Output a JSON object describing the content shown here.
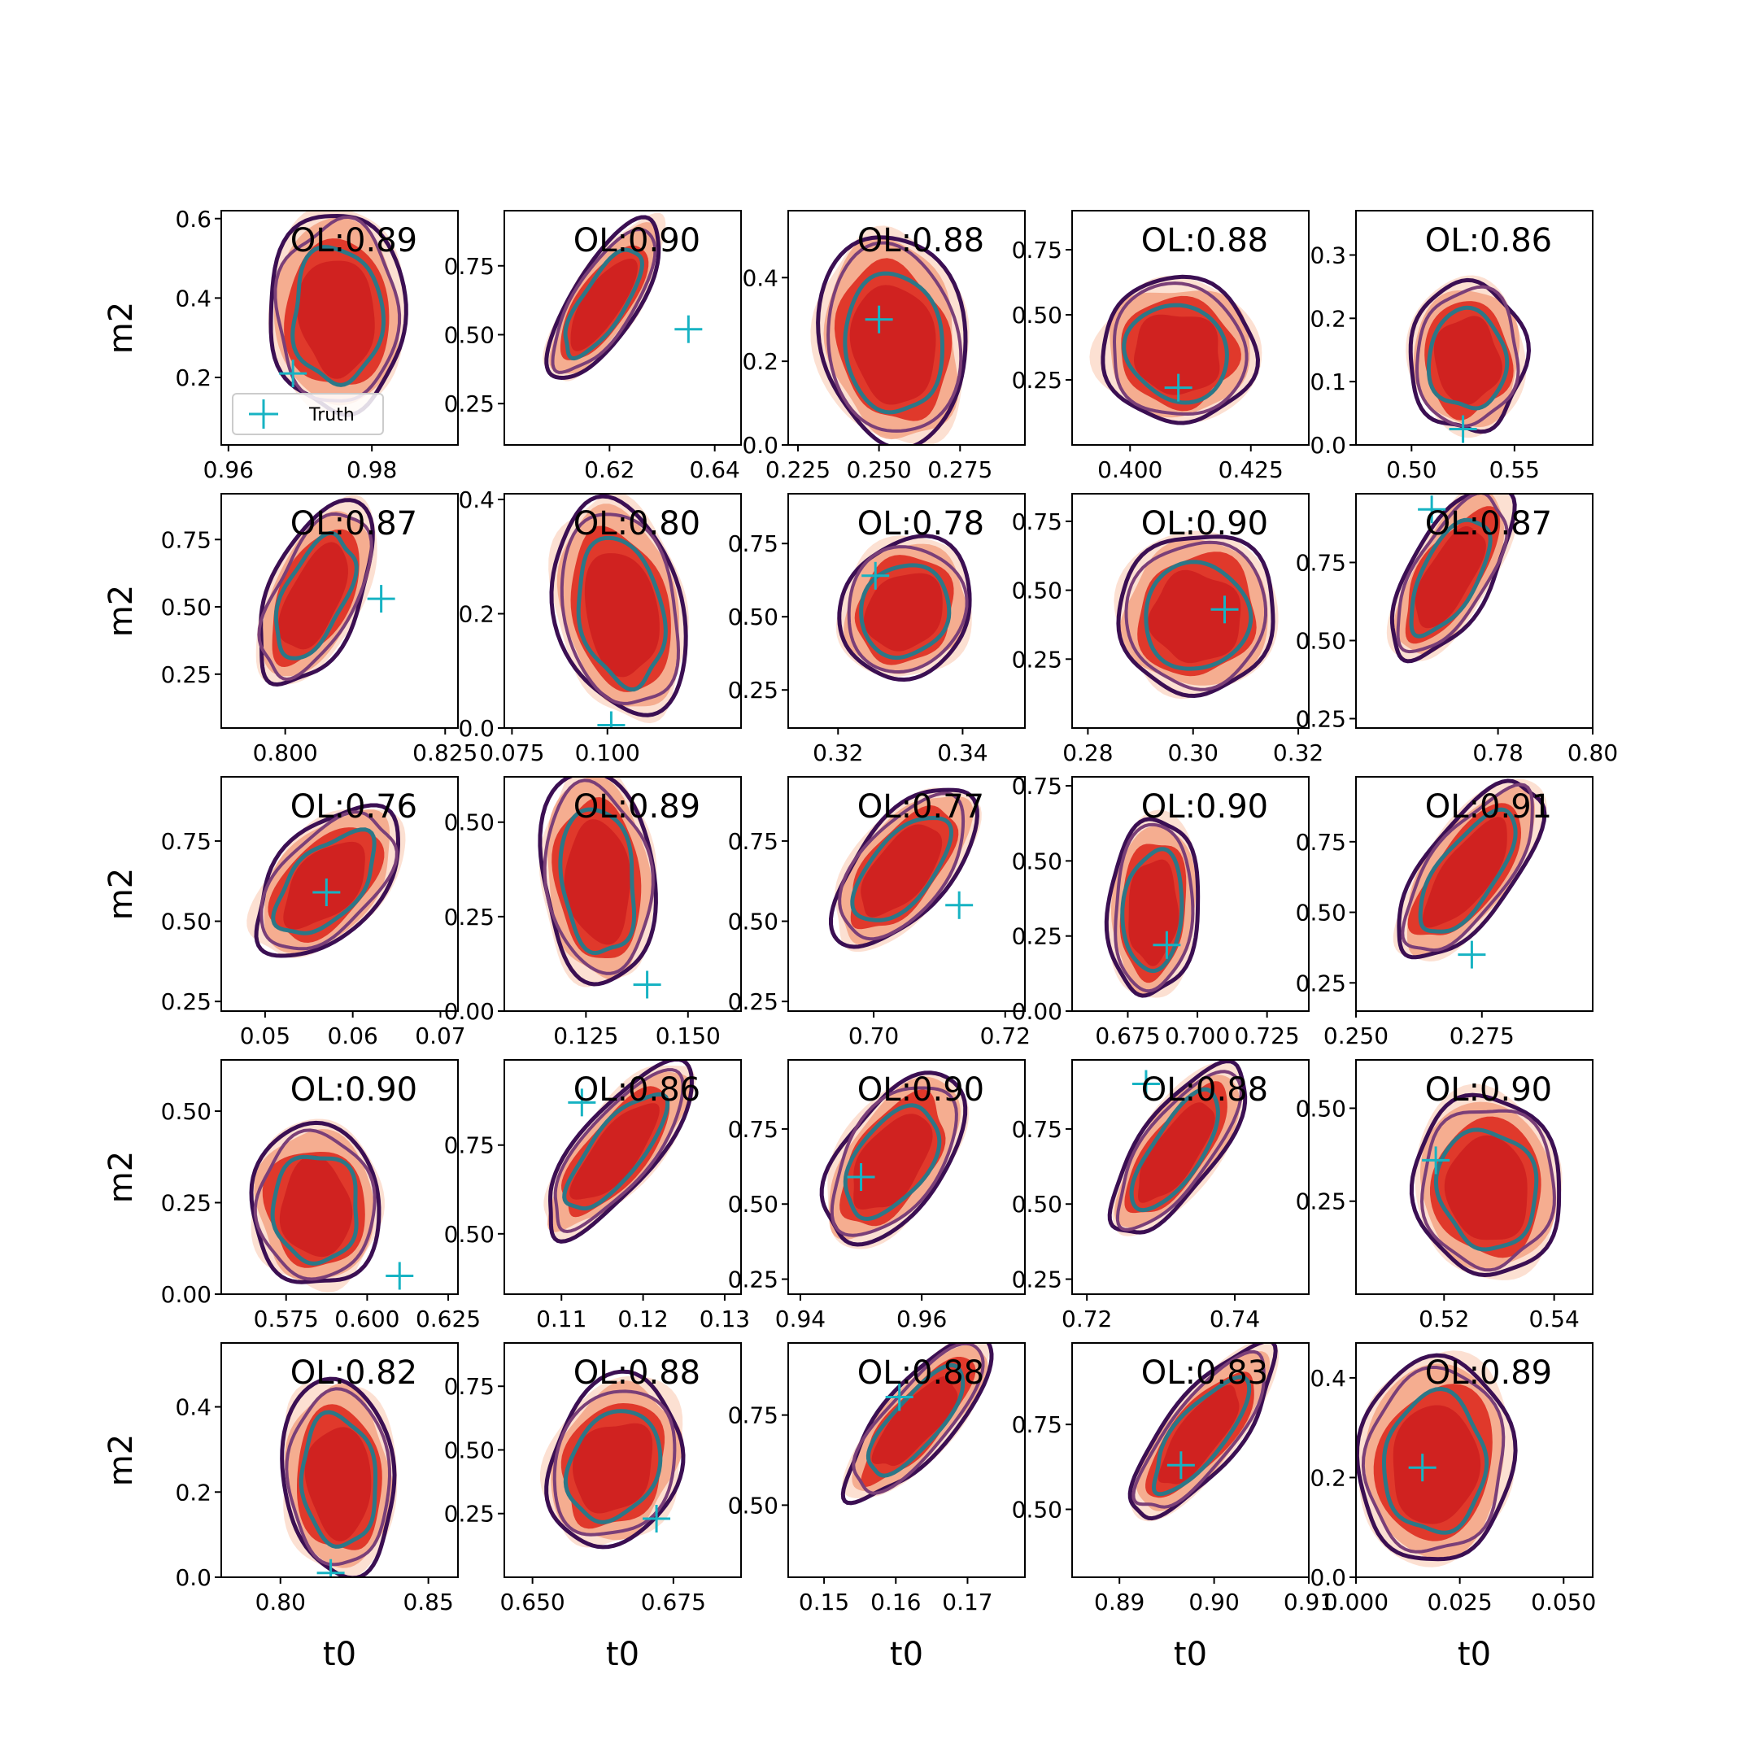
{
  "chart_data": {
    "type": "contour-grid",
    "rows": 5,
    "cols": 5,
    "xlabel": "t0",
    "ylabel": "m2",
    "legend": {
      "label": "Truth",
      "placement": "lower-left of first panel"
    },
    "colors": {
      "truth_marker": "#17b3c3",
      "fill_outer": "#fbd5c3",
      "fill_mid": "#f3a07f",
      "fill_inner": "#e0392b",
      "fill_core": "#cc1f1f",
      "contour_outer": "#3b0f53",
      "contour_mid": "#7a3f78",
      "contour_inner": "#2c7787"
    },
    "panels": [
      {
        "ol": "OL:0.89",
        "xlim": [
          0.959,
          0.992
        ],
        "ylim": [
          0.03,
          0.62
        ],
        "xticks": [
          0.96,
          0.98
        ],
        "xtick_labels": [
          "0.96",
          "0.98"
        ],
        "yticks": [
          0.2,
          0.4,
          0.6
        ],
        "ytick_labels": [
          "0.2",
          "0.4",
          "0.6"
        ],
        "truth": [
          0.969,
          0.21
        ],
        "shape": {
          "cx": 0.49,
          "cy": 0.52,
          "rx": 0.26,
          "ry": 0.4,
          "tilt": 0
        }
      },
      {
        "ol": "OL:0.90",
        "xlim": [
          0.6,
          0.645
        ],
        "ylim": [
          0.1,
          0.95
        ],
        "xticks": [
          0.62,
          0.64
        ],
        "xtick_labels": [
          "0.62",
          "0.64"
        ],
        "yticks": [
          0.25,
          0.5,
          0.75
        ],
        "ytick_labels": [
          "0.25",
          "0.50",
          "0.75"
        ],
        "truth": [
          0.635,
          0.52
        ],
        "shape": {
          "cx": 0.4,
          "cy": 0.58,
          "rx": 0.13,
          "ry": 0.36,
          "tilt": -32
        }
      },
      {
        "ol": "OL:0.88",
        "xlim": [
          0.222,
          0.295
        ],
        "ylim": [
          0.0,
          0.56
        ],
        "xticks": [
          0.225,
          0.25,
          0.275
        ],
        "xtick_labels": [
          "0.225",
          "0.250",
          "0.275"
        ],
        "yticks": [
          0.0,
          0.2,
          0.4
        ],
        "ytick_labels": [
          "0.0",
          "0.2",
          "0.4"
        ],
        "truth": [
          0.25,
          0.3
        ],
        "shape": {
          "cx": 0.45,
          "cy": 0.4,
          "rx": 0.28,
          "ry": 0.42,
          "tilt": 8
        }
      },
      {
        "ol": "OL:0.88",
        "xlim": [
          0.388,
          0.437
        ],
        "ylim": [
          0.0,
          0.9
        ],
        "xticks": [
          0.4,
          0.425
        ],
        "xtick_labels": [
          "0.400",
          "0.425"
        ],
        "yticks": [
          0.25,
          0.5,
          0.75
        ],
        "ytick_labels": [
          "0.25",
          "0.50",
          "0.75"
        ],
        "truth": [
          0.41,
          0.22
        ],
        "shape": {
          "cx": 0.44,
          "cy": 0.37,
          "rx": 0.3,
          "ry": 0.28,
          "tilt": -15
        }
      },
      {
        "ol": "OL:0.86",
        "xlim": [
          0.473,
          0.588
        ],
        "ylim": [
          0.0,
          0.37
        ],
        "xticks": [
          0.5,
          0.55
        ],
        "xtick_labels": [
          "0.50",
          "0.55"
        ],
        "yticks": [
          0.0,
          0.1,
          0.2,
          0.3
        ],
        "ytick_labels": [
          "0.0",
          "0.1",
          "0.2",
          "0.3"
        ],
        "truth": [
          0.525,
          0.025
        ],
        "shape": {
          "cx": 0.47,
          "cy": 0.34,
          "rx": 0.22,
          "ry": 0.3,
          "tilt": 0
        }
      },
      {
        "ol": "OL:0.87",
        "xlim": [
          0.79,
          0.827
        ],
        "ylim": [
          0.05,
          0.92
        ],
        "xticks": [
          0.8,
          0.825
        ],
        "xtick_labels": [
          "0.800",
          "0.825"
        ],
        "yticks": [
          0.25,
          0.5,
          0.75
        ],
        "ytick_labels": [
          "0.25",
          "0.50",
          "0.75"
        ],
        "truth": [
          0.815,
          0.53
        ],
        "shape": {
          "cx": 0.38,
          "cy": 0.53,
          "rx": 0.18,
          "ry": 0.38,
          "tilt": -25
        }
      },
      {
        "ol": "OL:0.80",
        "xlim": [
          0.073,
          0.135
        ],
        "ylim": [
          0.0,
          0.41
        ],
        "xticks": [
          0.075,
          0.1
        ],
        "xtick_labels": [
          "0.075",
          "0.100"
        ],
        "yticks": [
          0.0,
          0.2,
          0.4
        ],
        "ytick_labels": [
          "0.0",
          "0.2",
          "0.4"
        ],
        "truth": [
          0.101,
          0.005
        ],
        "shape": {
          "cx": 0.5,
          "cy": 0.46,
          "rx": 0.24,
          "ry": 0.44,
          "tilt": 12
        }
      },
      {
        "ol": "OL:0.78",
        "xlim": [
          0.312,
          0.35
        ],
        "ylim": [
          0.12,
          0.92
        ],
        "xticks": [
          0.32,
          0.34
        ],
        "xtick_labels": [
          "0.32",
          "0.34"
        ],
        "yticks": [
          0.25,
          0.5,
          0.75
        ],
        "ytick_labels": [
          "0.25",
          "0.50",
          "0.75"
        ],
        "truth": [
          0.326,
          0.64
        ],
        "shape": {
          "cx": 0.48,
          "cy": 0.48,
          "rx": 0.25,
          "ry": 0.28,
          "tilt": -30
        }
      },
      {
        "ol": "OL:0.90",
        "xlim": [
          0.277,
          0.322
        ],
        "ylim": [
          0.0,
          0.85
        ],
        "xticks": [
          0.28,
          0.3,
          0.32
        ],
        "xtick_labels": [
          "0.28",
          "0.30",
          "0.32"
        ],
        "yticks": [
          0.25,
          0.5,
          0.75
        ],
        "ytick_labels": [
          "0.25",
          "0.50",
          "0.75"
        ],
        "truth": [
          0.306,
          0.43
        ],
        "shape": {
          "cx": 0.52,
          "cy": 0.45,
          "rx": 0.3,
          "ry": 0.32,
          "tilt": -10
        }
      },
      {
        "ol": "OL:0.87",
        "xlim": [
          0.75,
          0.8
        ],
        "ylim": [
          0.22,
          0.97
        ],
        "xticks": [
          0.78,
          0.8
        ],
        "xtick_labels": [
          "0.78",
          "0.80"
        ],
        "yticks": [
          0.25,
          0.5,
          0.75
        ],
        "ytick_labels": [
          "0.25",
          "0.50",
          "0.75"
        ],
        "truth": [
          0.766,
          0.92
        ],
        "shape": {
          "cx": 0.38,
          "cy": 0.62,
          "rx": 0.16,
          "ry": 0.38,
          "tilt": -30
        }
      },
      {
        "ol": "OL:0.76",
        "xlim": [
          0.045,
          0.072
        ],
        "ylim": [
          0.22,
          0.95
        ],
        "xticks": [
          0.05,
          0.06,
          0.07
        ],
        "xtick_labels": [
          "0.05",
          "0.06",
          "0.07"
        ],
        "yticks": [
          0.25,
          0.5,
          0.75
        ],
        "ytick_labels": [
          "0.25",
          "0.50",
          "0.75"
        ],
        "truth": [
          0.057,
          0.59
        ],
        "shape": {
          "cx": 0.42,
          "cy": 0.52,
          "rx": 0.2,
          "ry": 0.36,
          "tilt": -42
        }
      },
      {
        "ol": "OL:0.89",
        "xlim": [
          0.105,
          0.163
        ],
        "ylim": [
          0.0,
          0.62
        ],
        "xticks": [
          0.125,
          0.15
        ],
        "xtick_labels": [
          "0.125",
          "0.150"
        ],
        "yticks": [
          0.0,
          0.25,
          0.5
        ],
        "ytick_labels": [
          "0.00",
          "0.25",
          "0.50"
        ],
        "truth": [
          0.14,
          0.07
        ],
        "shape": {
          "cx": 0.4,
          "cy": 0.52,
          "rx": 0.22,
          "ry": 0.42,
          "tilt": 5
        }
      },
      {
        "ol": "OL:0.77",
        "xlim": [
          0.687,
          0.723
        ],
        "ylim": [
          0.22,
          0.95
        ],
        "xticks": [
          0.7,
          0.72
        ],
        "xtick_labels": [
          "0.70",
          "0.72"
        ],
        "yticks": [
          0.25,
          0.5,
          0.75
        ],
        "ytick_labels": [
          "0.25",
          "0.50",
          "0.75"
        ],
        "truth": [
          0.713,
          0.55
        ],
        "shape": {
          "cx": 0.46,
          "cy": 0.58,
          "rx": 0.18,
          "ry": 0.38,
          "tilt": -38
        }
      },
      {
        "ol": "OL:0.90",
        "xlim": [
          0.655,
          0.74
        ],
        "ylim": [
          0.0,
          0.78
        ],
        "xticks": [
          0.675,
          0.7,
          0.725
        ],
        "xtick_labels": [
          "0.675",
          "0.700",
          "0.725"
        ],
        "yticks": [
          0.0,
          0.25,
          0.5,
          0.75
        ],
        "ytick_labels": [
          "0.00",
          "0.25",
          "0.50",
          "0.75"
        ],
        "truth": [
          0.689,
          0.22
        ],
        "shape": {
          "cx": 0.34,
          "cy": 0.4,
          "rx": 0.17,
          "ry": 0.36,
          "tilt": -5
        }
      },
      {
        "ol": "OL:0.91",
        "xlim": [
          0.25,
          0.297
        ],
        "ylim": [
          0.15,
          0.98
        ],
        "xticks": [
          0.25,
          0.275
        ],
        "xtick_labels": [
          "0.250",
          "0.275"
        ],
        "yticks": [
          0.25,
          0.5,
          0.75
        ],
        "ytick_labels": [
          "0.25",
          "0.50",
          "0.75"
        ],
        "truth": [
          0.273,
          0.35
        ],
        "shape": {
          "cx": 0.45,
          "cy": 0.56,
          "rx": 0.17,
          "ry": 0.42,
          "tilt": -35
        }
      },
      {
        "ol": "OL:0.90",
        "xlim": [
          0.555,
          0.628
        ],
        "ylim": [
          0.0,
          0.64
        ],
        "xticks": [
          0.575,
          0.6,
          0.625
        ],
        "xtick_labels": [
          "0.575",
          "0.600",
          "0.625"
        ],
        "yticks": [
          0.0,
          0.25,
          0.5
        ],
        "ytick_labels": [
          "0.00",
          "0.25",
          "0.50"
        ],
        "truth": [
          0.61,
          0.05
        ],
        "shape": {
          "cx": 0.4,
          "cy": 0.34,
          "rx": 0.25,
          "ry": 0.32,
          "tilt": 0
        }
      },
      {
        "ol": "OL:0.86",
        "xlim": [
          0.103,
          0.132
        ],
        "ylim": [
          0.33,
          0.99
        ],
        "xticks": [
          0.11,
          0.12,
          0.13
        ],
        "xtick_labels": [
          "0.11",
          "0.12",
          "0.13"
        ],
        "yticks": [
          0.5,
          0.75
        ],
        "ytick_labels": [
          "0.50",
          "0.75"
        ],
        "truth": [
          0.1125,
          0.87
        ],
        "shape": {
          "cx": 0.45,
          "cy": 0.58,
          "rx": 0.15,
          "ry": 0.42,
          "tilt": -38
        }
      },
      {
        "ol": "OL:0.90",
        "xlim": [
          0.938,
          0.977
        ],
        "ylim": [
          0.2,
          0.98
        ],
        "xticks": [
          0.94,
          0.96
        ],
        "xtick_labels": [
          "0.94",
          "0.96"
        ],
        "yticks": [
          0.25,
          0.5,
          0.75
        ],
        "ytick_labels": [
          "0.25",
          "0.50",
          "0.75"
        ],
        "truth": [
          0.95,
          0.59
        ],
        "shape": {
          "cx": 0.42,
          "cy": 0.54,
          "rx": 0.2,
          "ry": 0.38,
          "tilt": -35
        }
      },
      {
        "ol": "OL:0.88",
        "xlim": [
          0.718,
          0.75
        ],
        "ylim": [
          0.2,
          0.98
        ],
        "xticks": [
          0.72,
          0.74
        ],
        "xtick_labels": [
          "0.72",
          "0.74"
        ],
        "yticks": [
          0.25,
          0.5,
          0.75
        ],
        "ytick_labels": [
          "0.25",
          "0.50",
          "0.75"
        ],
        "truth": [
          0.728,
          0.9
        ],
        "shape": {
          "cx": 0.42,
          "cy": 0.58,
          "rx": 0.15,
          "ry": 0.4,
          "tilt": -35
        }
      },
      {
        "ol": "OL:0.90",
        "xlim": [
          0.504,
          0.547
        ],
        "ylim": [
          0.0,
          0.63
        ],
        "xticks": [
          0.52,
          0.54
        ],
        "xtick_labels": [
          "0.52",
          "0.54"
        ],
        "yticks": [
          0.25,
          0.5
        ],
        "ytick_labels": [
          "0.25",
          "0.50"
        ],
        "truth": [
          0.5185,
          0.36
        ],
        "shape": {
          "cx": 0.56,
          "cy": 0.42,
          "rx": 0.28,
          "ry": 0.36,
          "tilt": 5
        }
      },
      {
        "ol": "OL:0.82",
        "xlim": [
          0.78,
          0.86
        ],
        "ylim": [
          0.0,
          0.55
        ],
        "xticks": [
          0.8,
          0.85
        ],
        "xtick_labels": [
          "0.80",
          "0.85"
        ],
        "yticks": [
          0.0,
          0.2,
          0.4
        ],
        "ytick_labels": [
          "0.0",
          "0.2",
          "0.4"
        ],
        "truth": [
          0.817,
          0.01
        ],
        "shape": {
          "cx": 0.5,
          "cy": 0.38,
          "rx": 0.22,
          "ry": 0.38,
          "tilt": 5
        }
      },
      {
        "ol": "OL:0.88",
        "xlim": [
          0.645,
          0.687
        ],
        "ylim": [
          0.0,
          0.92
        ],
        "xticks": [
          0.65,
          0.675
        ],
        "xtick_labels": [
          "0.650",
          "0.675"
        ],
        "yticks": [
          0.25,
          0.5,
          0.75
        ],
        "ytick_labels": [
          "0.25",
          "0.50",
          "0.75"
        ],
        "truth": [
          0.672,
          0.23
        ],
        "shape": {
          "cx": 0.45,
          "cy": 0.45,
          "rx": 0.25,
          "ry": 0.34,
          "tilt": -25
        }
      },
      {
        "ol": "OL:0.88",
        "xlim": [
          0.145,
          0.178
        ],
        "ylim": [
          0.3,
          0.95
        ],
        "xticks": [
          0.15,
          0.16,
          0.17
        ],
        "xtick_labels": [
          "0.15",
          "0.16",
          "0.17"
        ],
        "yticks": [
          0.5,
          0.75
        ],
        "ytick_labels": [
          "0.50",
          "0.75"
        ],
        "truth": [
          0.1605,
          0.8
        ],
        "shape": {
          "cx": 0.52,
          "cy": 0.64,
          "rx": 0.14,
          "ry": 0.4,
          "tilt": -40
        }
      },
      {
        "ol": "OL:0.83",
        "xlim": [
          0.885,
          0.91
        ],
        "ylim": [
          0.3,
          0.99
        ],
        "xticks": [
          0.89,
          0.9,
          0.91
        ],
        "xtick_labels": [
          "0.89",
          "0.90",
          "0.91"
        ],
        "yticks": [
          0.5,
          0.75
        ],
        "ytick_labels": [
          "0.50",
          "0.75"
        ],
        "truth": [
          0.8965,
          0.63
        ],
        "shape": {
          "cx": 0.52,
          "cy": 0.58,
          "rx": 0.14,
          "ry": 0.42,
          "tilt": -38
        }
      },
      {
        "ol": "OL:0.89",
        "xlim": [
          0.0,
          0.057
        ],
        "ylim": [
          0.0,
          0.47
        ],
        "xticks": [
          0.0,
          0.025,
          0.05
        ],
        "xtick_labels": [
          "0.000",
          "0.025",
          "0.050"
        ],
        "yticks": [
          0.0,
          0.2,
          0.4
        ],
        "ytick_labels": [
          "0.0",
          "0.2",
          "0.4"
        ],
        "truth": [
          0.016,
          0.22
        ],
        "shape": {
          "cx": 0.33,
          "cy": 0.45,
          "rx": 0.3,
          "ry": 0.4,
          "tilt": -5
        }
      }
    ]
  }
}
